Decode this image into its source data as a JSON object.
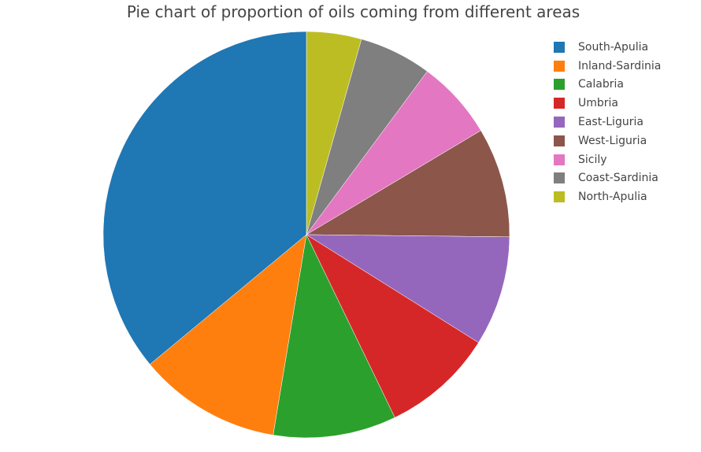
{
  "chart_data": {
    "type": "pie",
    "title": "Pie chart of proportion of oils coming from different areas",
    "categories": [
      "South-Apulia",
      "Inland-Sardinia",
      "Calabria",
      "Umbria",
      "East-Liguria",
      "West-Liguria",
      "Sicily",
      "Coast-Sardinia",
      "North-Apulia"
    ],
    "values": [
      206,
      65,
      56,
      51,
      50,
      50,
      36,
      33,
      25
    ],
    "colors": [
      "#1f77b4",
      "#ff7f0e",
      "#2ca02c",
      "#d62728",
      "#9467bd",
      "#8c564b",
      "#e377c2",
      "#7f7f7f",
      "#bcbd22"
    ],
    "sort": "descending",
    "direction": "counterclockwise-in-legend-order",
    "start": "12 o'clock",
    "legend_position": "top-right"
  }
}
